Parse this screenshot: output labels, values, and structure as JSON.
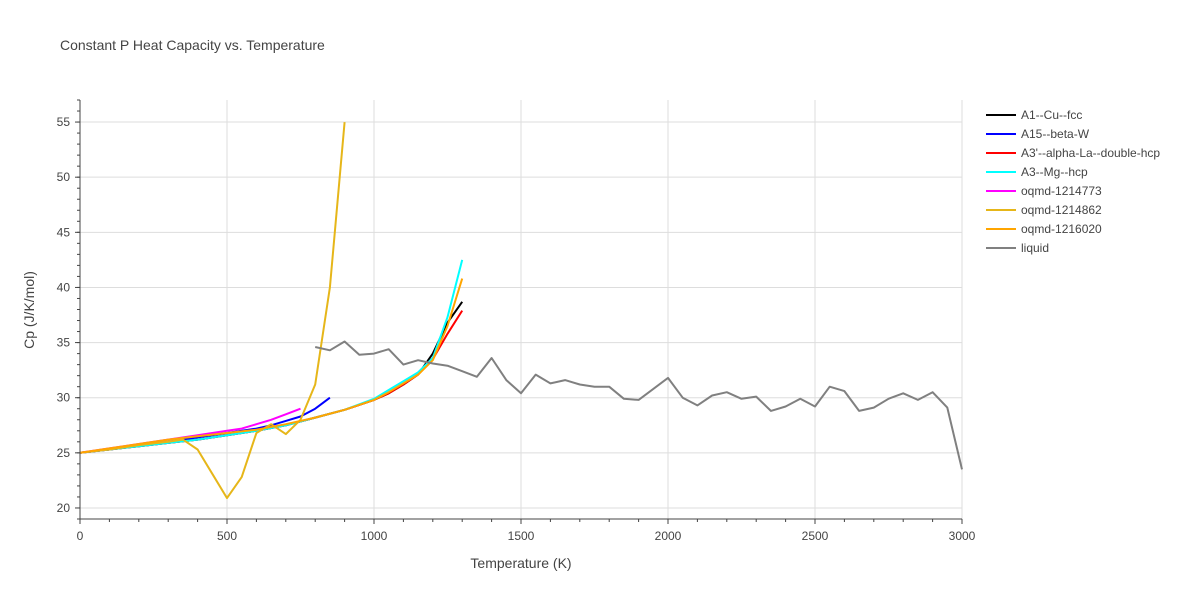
{
  "chart_data": {
    "type": "line",
    "title": "Constant P Heat Capacity vs. Temperature",
    "xlabel": "Temperature (K)",
    "ylabel": "Cp (J/K/mol)",
    "xlim": [
      0,
      3000
    ],
    "ylim": [
      19,
      57
    ],
    "x_ticks": [
      0,
      500,
      1000,
      1500,
      2000,
      2500,
      3000
    ],
    "x_tick_labels": [
      "0",
      "500",
      "1000",
      "1500",
      "2000",
      "2500",
      "3000"
    ],
    "y_ticks": [
      20,
      25,
      30,
      35,
      40,
      45,
      50,
      55
    ],
    "y_tick_labels": [
      "20",
      "25",
      "30",
      "35",
      "40",
      "45",
      "50",
      "55"
    ],
    "grid": true,
    "legend_position": "right",
    "series": [
      {
        "name": "A1--Cu--fcc",
        "color": "#000000",
        "x": [
          0,
          100,
          200,
          300,
          400,
          500,
          600,
          700,
          800,
          900,
          1000,
          1050,
          1100,
          1150,
          1200,
          1250,
          1300
        ],
        "y": [
          25.0,
          25.3,
          25.6,
          25.9,
          26.2,
          26.6,
          27.0,
          27.5,
          28.2,
          28.9,
          29.8,
          30.4,
          31.2,
          32.1,
          34.0,
          36.8,
          38.7
        ]
      },
      {
        "name": "A15--beta-W",
        "color": "#0000ff",
        "x": [
          0,
          100,
          200,
          300,
          400,
          500,
          600,
          650,
          700,
          750,
          800,
          850
        ],
        "y": [
          25.0,
          25.3,
          25.7,
          26.0,
          26.4,
          26.8,
          27.2,
          27.5,
          27.9,
          28.3,
          29.0,
          30.0
        ]
      },
      {
        "name": "A3'--alpha-La--double-hcp",
        "color": "#ff0000",
        "x": [
          0,
          100,
          200,
          300,
          400,
          500,
          600,
          700,
          800,
          900,
          1000,
          1050,
          1100,
          1150,
          1200,
          1250,
          1300
        ],
        "y": [
          25.0,
          25.3,
          25.6,
          25.9,
          26.2,
          26.6,
          27.0,
          27.5,
          28.2,
          28.9,
          29.8,
          30.4,
          31.2,
          32.1,
          33.5,
          35.8,
          37.9
        ]
      },
      {
        "name": "A3--Mg--hcp",
        "color": "#00ffff",
        "x": [
          0,
          100,
          200,
          300,
          400,
          500,
          600,
          700,
          800,
          900,
          1000,
          1050,
          1100,
          1150,
          1200,
          1250,
          1300
        ],
        "y": [
          25.0,
          25.3,
          25.6,
          25.9,
          26.2,
          26.6,
          27.0,
          27.5,
          28.2,
          28.9,
          29.9,
          30.7,
          31.5,
          32.3,
          33.6,
          37.3,
          42.5
        ]
      },
      {
        "name": "oqmd-1214773",
        "color": "#ff00ff",
        "x": [
          0,
          100,
          200,
          300,
          400,
          500,
          550,
          600,
          650,
          700,
          750
        ],
        "y": [
          25.0,
          25.4,
          25.8,
          26.2,
          26.6,
          27.0,
          27.2,
          27.6,
          28.0,
          28.5,
          29.0
        ]
      },
      {
        "name": "oqmd-1214862",
        "color": "#e6b619",
        "x": [
          0,
          100,
          200,
          300,
          350,
          400,
          450,
          500,
          550,
          600,
          650,
          700,
          750,
          800,
          850,
          900
        ],
        "y": [
          25.0,
          25.3,
          25.7,
          26.0,
          26.2,
          25.3,
          23.1,
          20.9,
          22.8,
          26.8,
          27.6,
          26.7,
          28.0,
          31.2,
          40.0,
          55.0
        ]
      },
      {
        "name": "oqmd-1216020",
        "color": "#ffa500",
        "x": [
          0,
          100,
          200,
          300,
          400,
          500,
          600,
          700,
          800,
          900,
          1000,
          1050,
          1100,
          1150,
          1200,
          1250,
          1300
        ],
        "y": [
          25.0,
          25.4,
          25.8,
          26.2,
          26.5,
          26.8,
          27.1,
          27.6,
          28.2,
          28.9,
          29.8,
          30.5,
          31.3,
          32.1,
          33.4,
          36.5,
          40.8
        ]
      },
      {
        "name": "liquid",
        "color": "#808080",
        "x": [
          800,
          850,
          900,
          950,
          1000,
          1050,
          1100,
          1150,
          1200,
          1250,
          1300,
          1350,
          1400,
          1450,
          1500,
          1550,
          1600,
          1650,
          1700,
          1750,
          1800,
          1850,
          1900,
          1950,
          2000,
          2050,
          2100,
          2150,
          2200,
          2250,
          2300,
          2350,
          2400,
          2450,
          2500,
          2550,
          2600,
          2650,
          2700,
          2750,
          2800,
          2850,
          2900,
          2950,
          3000
        ],
        "y": [
          34.6,
          34.3,
          35.1,
          33.9,
          34.0,
          34.4,
          33.0,
          33.4,
          33.1,
          32.9,
          32.4,
          31.9,
          33.6,
          31.6,
          30.4,
          32.1,
          31.3,
          31.6,
          31.2,
          31.0,
          31.0,
          29.9,
          29.8,
          30.8,
          31.8,
          30.0,
          29.3,
          30.2,
          30.5,
          29.9,
          30.1,
          28.8,
          29.2,
          29.9,
          29.2,
          31.0,
          30.6,
          28.8,
          29.1,
          29.9,
          30.4,
          29.8,
          30.5,
          29.1,
          23.5
        ]
      }
    ]
  }
}
